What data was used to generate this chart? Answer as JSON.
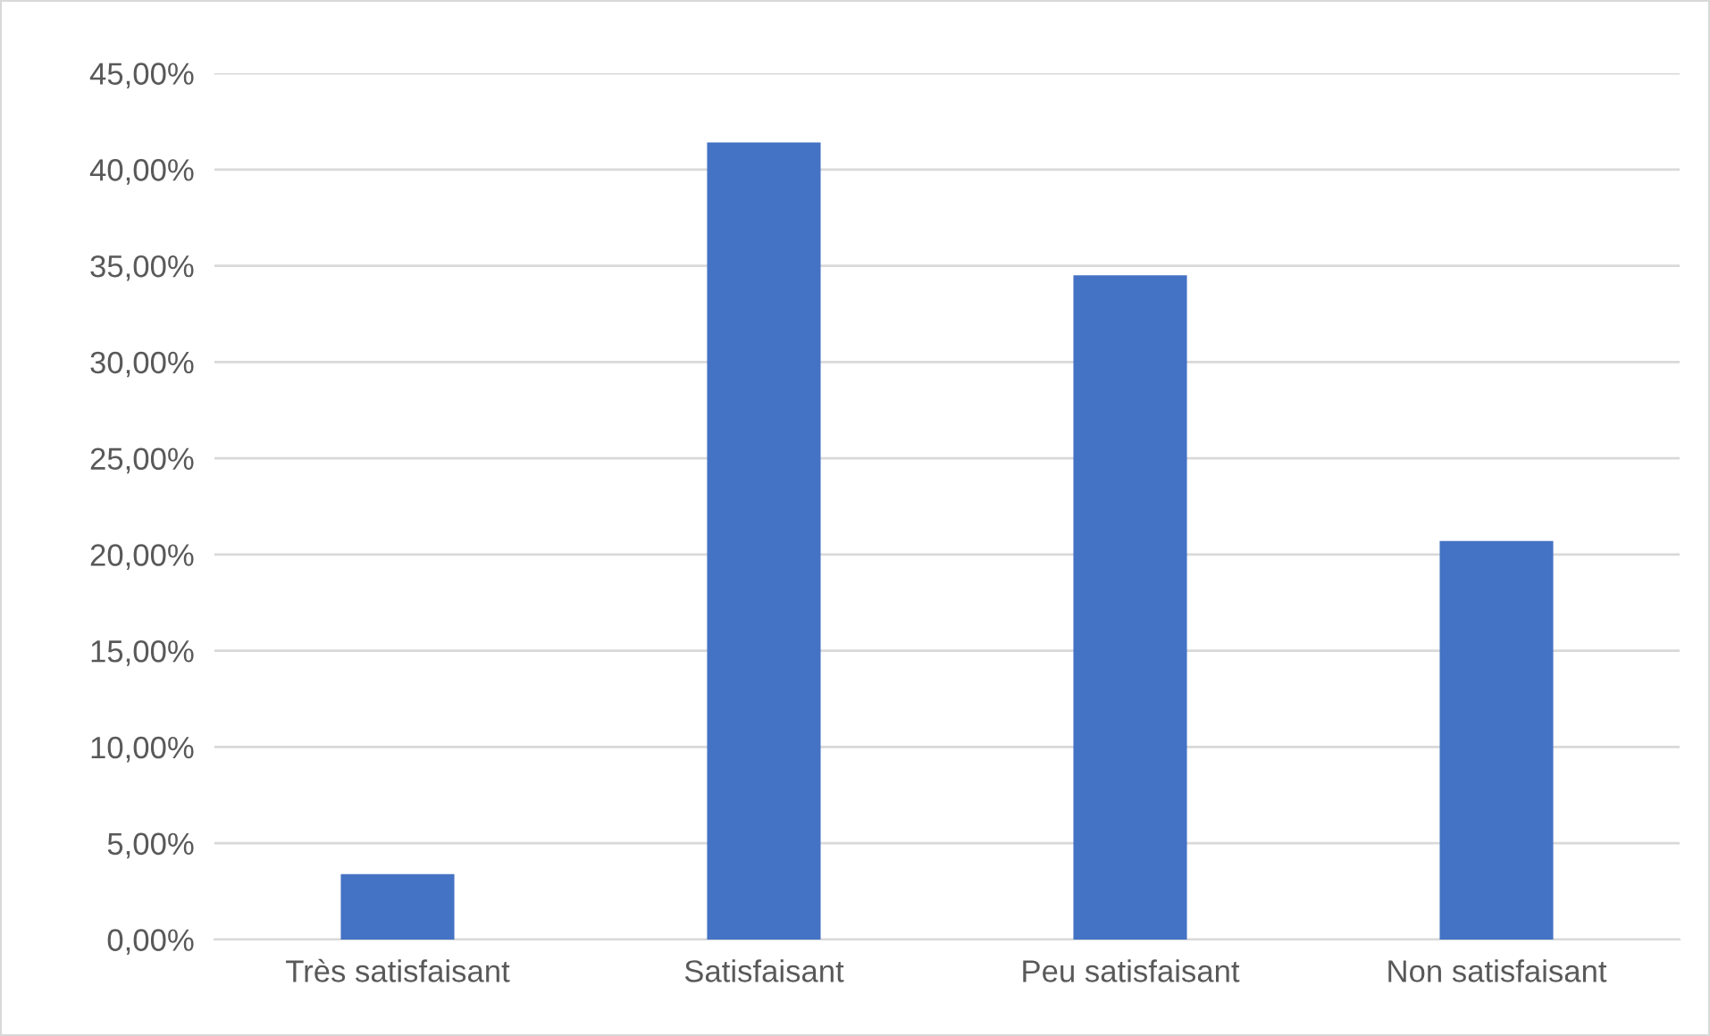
{
  "chart_data": {
    "type": "bar",
    "categories": [
      "Très satisfaisant",
      "Satisfaisant",
      "Peu satisfaisant",
      "Non satisfaisant"
    ],
    "values": [
      3.4,
      41.4,
      34.5,
      20.7
    ],
    "color": "#4472c4",
    "ylim": [
      0,
      45
    ],
    "yticks": [
      {
        "value": 0,
        "label": "0,00%"
      },
      {
        "value": 5,
        "label": "5,00%"
      },
      {
        "value": 10,
        "label": "10,00%"
      },
      {
        "value": 15,
        "label": "15,00%"
      },
      {
        "value": 20,
        "label": "20,00%"
      },
      {
        "value": 25,
        "label": "25,00%"
      },
      {
        "value": 30,
        "label": "30,00%"
      },
      {
        "value": 35,
        "label": "35,00%"
      },
      {
        "value": 40,
        "label": "40,00%"
      },
      {
        "value": 45,
        "label": "45,00%"
      }
    ],
    "grid": "y",
    "legend": false
  }
}
